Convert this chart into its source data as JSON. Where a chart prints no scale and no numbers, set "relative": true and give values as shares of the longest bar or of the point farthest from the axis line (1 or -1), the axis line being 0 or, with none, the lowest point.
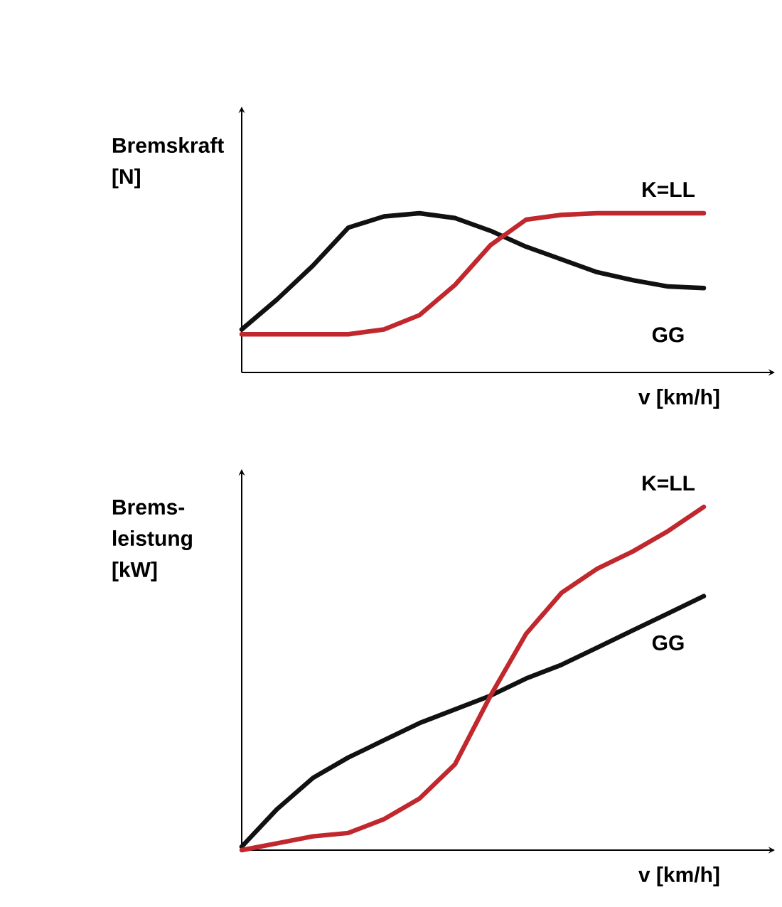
{
  "chart_data": [
    {
      "type": "line",
      "relative": true,
      "xlabel": "v [km/h]",
      "ylabel": "Bremskraft [N]",
      "categories": [
        null,
        null,
        null,
        null,
        null,
        null,
        null,
        null,
        null,
        null,
        null,
        null,
        null,
        null
      ],
      "series": [
        {
          "name": "GG",
          "color": "#111111",
          "values": [
            0.27,
            0.46,
            0.67,
            0.91,
            0.98,
            1.0,
            0.97,
            0.89,
            0.79,
            0.71,
            0.63,
            0.58,
            0.54,
            0.53
          ]
        },
        {
          "name": "K=LL",
          "color": "#c0282d",
          "values": [
            0.24,
            0.24,
            0.24,
            0.24,
            0.27,
            0.36,
            0.55,
            0.8,
            0.96,
            0.99,
            1.0,
            1.0,
            1.0,
            1.0
          ]
        }
      ]
    },
    {
      "type": "line",
      "relative": true,
      "xlabel": "v [km/h]",
      "ylabel": "Brems-leistung [kW]",
      "categories": [
        null,
        null,
        null,
        null,
        null,
        null,
        null,
        null,
        null,
        null,
        null,
        null,
        null,
        null
      ],
      "series": [
        {
          "name": "GG",
          "color": "#111111",
          "values": [
            0.01,
            0.12,
            0.21,
            0.27,
            0.32,
            0.37,
            0.41,
            0.45,
            0.5,
            0.54,
            0.59,
            0.64,
            0.69,
            0.74
          ]
        },
        {
          "name": "K=LL",
          "color": "#c0282d",
          "values": [
            0.0,
            0.02,
            0.04,
            0.05,
            0.09,
            0.15,
            0.25,
            0.45,
            0.63,
            0.75,
            0.82,
            0.87,
            0.93,
            1.0
          ]
        }
      ]
    }
  ]
}
